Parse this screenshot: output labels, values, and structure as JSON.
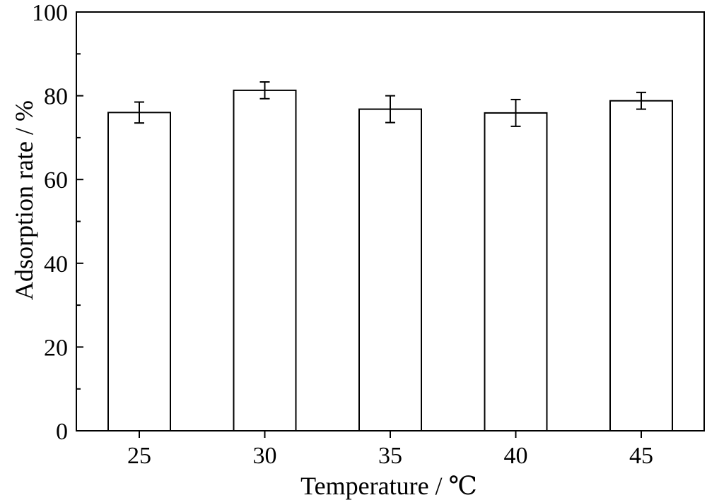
{
  "chart_data": {
    "type": "bar",
    "title": "",
    "xlabel": "Temperature / ℃",
    "ylabel": "Adsorption rate / %",
    "categories": [
      "25",
      "30",
      "35",
      "40",
      "45"
    ],
    "values": [
      76.0,
      81.3,
      76.8,
      75.9,
      78.8
    ],
    "errors": [
      2.5,
      2.0,
      3.2,
      3.2,
      2.0
    ],
    "ylim": [
      0,
      100
    ],
    "yticks": [
      "0",
      "20",
      "40",
      "60",
      "80",
      "100"
    ],
    "grid": false,
    "legend": "none",
    "bar_fill": "#ffffff",
    "bar_stroke": "#000000"
  }
}
